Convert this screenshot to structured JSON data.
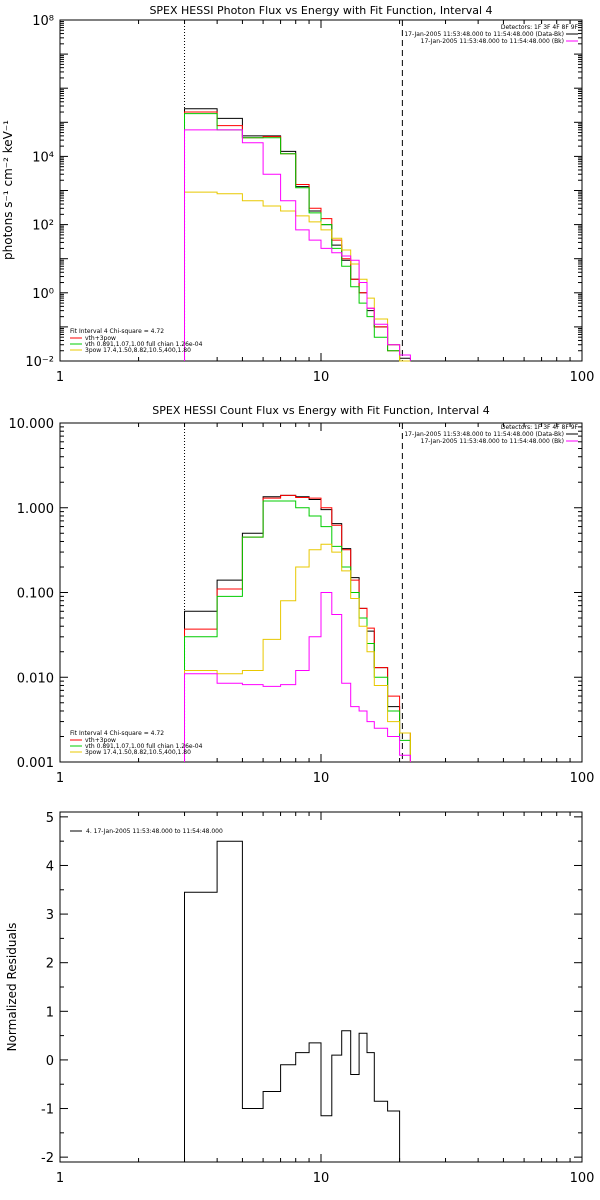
{
  "chart_data": [
    {
      "type": "line",
      "title": "SPEX HESSI Photon Flux vs Energy with Fit Function, Interval 4",
      "ylabel": "photons s⁻¹ cm⁻² keV⁻¹",
      "xlabel": "",
      "x_scale": "log",
      "y_scale": "log",
      "xlim": [
        1,
        100
      ],
      "ylim": [
        0.01,
        100000000
      ],
      "x_ticks": [
        1,
        10,
        100
      ],
      "x_tick_labels": [
        "1",
        "10",
        "100"
      ],
      "y_ticks": [
        0.01,
        1,
        100,
        10000,
        100000000
      ],
      "y_tick_labels": [
        "10⁻²",
        "10⁰",
        "10²",
        "10⁴",
        "10⁸"
      ],
      "grid": false,
      "legend_top_right": [
        "Detectors: 1F 3F 4F 8F 9F",
        "17-Jan-2005 11:53:48.000 to 11:54:48.000 (Data-Bk)",
        "17-Jan-2005 11:53:48.000 to 11:54:48.000 (Bk)"
      ],
      "legend_bottom_left": [
        "Fit Interval 4   Chi-square = 4.72",
        "vth+3pow",
        "vth 0.891,1.07,1.00  full chian 1.26e-04",
        "3pow 17.4,1.50,8.82,10.5,400,1.80"
      ],
      "vlines": [
        3.0,
        20.5
      ],
      "bin_edges": [
        3.0,
        4.0,
        5.0,
        6.0,
        7.0,
        8.0,
        9.0,
        10.0,
        11.0,
        12.0,
        13.0,
        14.0,
        15.0,
        16.0,
        18.0,
        20.0,
        22.0
      ],
      "series": [
        {
          "name": "Data-Bk",
          "color": "#000000",
          "values": [
            250000,
            130000,
            40000,
            40000,
            14000,
            1300,
            250,
            100,
            25,
            9,
            2.5,
            1.0,
            0.3,
            0.1,
            0.03,
            0.012
          ]
        },
        {
          "name": "vth+3pow",
          "color": "#ff0000",
          "values": [
            200000,
            80000,
            35000,
            38000,
            12000,
            1500,
            300,
            150,
            35,
            10,
            2.5,
            1.0,
            0.35,
            0.1,
            0.02,
            0.01
          ]
        },
        {
          "name": "vth",
          "color": "#00cc00",
          "values": [
            180000,
            60000,
            35000,
            35000,
            12000,
            1200,
            220,
            100,
            20,
            6,
            1.5,
            0.5,
            0.2,
            0.05,
            0.02,
            0.01
          ]
        },
        {
          "name": "3pow",
          "color": "#e8c800",
          "values": [
            900,
            800,
            500,
            350,
            250,
            180,
            120,
            70,
            40,
            18,
            7,
            2.5,
            0.7,
            0.17,
            0.03,
            0.01
          ]
        },
        {
          "name": "Bk",
          "color": "#ff00ff",
          "values": [
            60000,
            60000,
            25000,
            3000,
            500,
            70,
            35,
            20,
            15,
            12,
            9,
            2.0,
            0.35,
            0.12,
            0.03,
            0.015
          ]
        }
      ]
    },
    {
      "type": "line",
      "title": "SPEX HESSI Count Flux vs Energy with Fit Function, Interval 4",
      "xlabel": "",
      "ylabel": "",
      "x_scale": "log",
      "y_scale": "log",
      "xlim": [
        1,
        100
      ],
      "ylim": [
        0.001,
        10
      ],
      "x_ticks": [
        1,
        10,
        100
      ],
      "x_tick_labels": [
        "1",
        "10",
        "100"
      ],
      "y_ticks": [
        0.001,
        0.01,
        0.1,
        1,
        10
      ],
      "y_tick_labels": [
        "0.001",
        "0.010",
        "0.100",
        "1.000",
        "10.000"
      ],
      "grid": false,
      "legend_top_right": [
        "Detectors: 1F 3F 4F 8F 9F",
        "17-Jan-2005 11:53:48.000 to 11:54:48.000 (Data-Bk)",
        "17-Jan-2005 11:53:48.000 to 11:54:48.000 (Bk)"
      ],
      "legend_bottom_left": [
        "Fit Interval 4   Chi-square = 4.72",
        "vth+3pow",
        "vth 0.891,1.07,1.00  full chian 1.26e-04",
        "3pow 17.4,1.50,8.82,10.5,400,1.80"
      ],
      "vlines": [
        3.0,
        20.5
      ],
      "bin_edges": [
        3.0,
        4.0,
        5.0,
        6.0,
        7.0,
        8.0,
        9.0,
        10.0,
        11.0,
        12.0,
        13.0,
        14.0,
        15.0,
        16.0,
        18.0,
        20.0,
        22.0
      ],
      "series": [
        {
          "name": "Data-Bk",
          "color": "#000000",
          "values": [
            0.06,
            0.14,
            0.5,
            1.35,
            1.4,
            1.35,
            1.25,
            0.95,
            0.65,
            0.33,
            0.15,
            0.065,
            0.035,
            0.013,
            0.0045,
            0.0022
          ]
        },
        {
          "name": "vth+3pow",
          "color": "#ff0000",
          "values": [
            0.037,
            0.11,
            0.45,
            1.3,
            1.4,
            1.32,
            1.3,
            1.0,
            0.62,
            0.32,
            0.14,
            0.065,
            0.038,
            0.013,
            0.006,
            0.0022
          ]
        },
        {
          "name": "vth",
          "color": "#00cc00",
          "values": [
            0.03,
            0.09,
            0.45,
            1.2,
            1.2,
            1.0,
            0.8,
            0.6,
            0.35,
            0.2,
            0.1,
            0.05,
            0.025,
            0.01,
            0.004,
            0.0018
          ]
        },
        {
          "name": "3pow",
          "color": "#e8c800",
          "values": [
            0.012,
            0.011,
            0.012,
            0.028,
            0.08,
            0.2,
            0.32,
            0.37,
            0.3,
            0.18,
            0.085,
            0.04,
            0.02,
            0.008,
            0.003,
            0.0022
          ]
        },
        {
          "name": "Bk",
          "color": "#ff00ff",
          "values": [
            0.011,
            0.0085,
            0.0082,
            0.0078,
            0.0082,
            0.012,
            0.03,
            0.1,
            0.055,
            0.0085,
            0.0045,
            0.004,
            0.003,
            0.0025,
            0.002,
            0.0012
          ]
        }
      ]
    },
    {
      "type": "line",
      "title": "",
      "ylabel": "Normalized Residuals",
      "xlabel": "",
      "x_scale": "log",
      "xlim": [
        1,
        100
      ],
      "ylim": [
        -2.1,
        5.1
      ],
      "x_ticks": [
        1,
        10,
        100
      ],
      "x_tick_labels": [
        "1",
        "10",
        "100"
      ],
      "y_ticks": [
        -2,
        -1,
        0,
        1,
        2,
        3,
        4,
        5
      ],
      "y_tick_labels": [
        "-2",
        "-1",
        "0",
        "1",
        "2",
        "3",
        "4",
        "5"
      ],
      "grid": false,
      "legend_top_left": [
        "4. 17-Jan-2005 11:53:48.000 to 11:54:48.000"
      ],
      "bin_edges": [
        3.0,
        4.0,
        5.0,
        6.0,
        7.0,
        8.0,
        9.0,
        10.0,
        11.0,
        12.0,
        13.0,
        14.0,
        15.0,
        16.0,
        18.0,
        20.0
      ],
      "series": [
        {
          "name": "4. 17-Jan-2005 11:53:48.000 to 11:54:48.000",
          "color": "#000000",
          "values": [
            3.45,
            4.5,
            -1.0,
            -0.65,
            -0.1,
            0.15,
            0.35,
            -1.15,
            0.1,
            0.6,
            -0.3,
            0.55,
            0.15,
            -0.85,
            -1.05
          ]
        }
      ]
    }
  ]
}
